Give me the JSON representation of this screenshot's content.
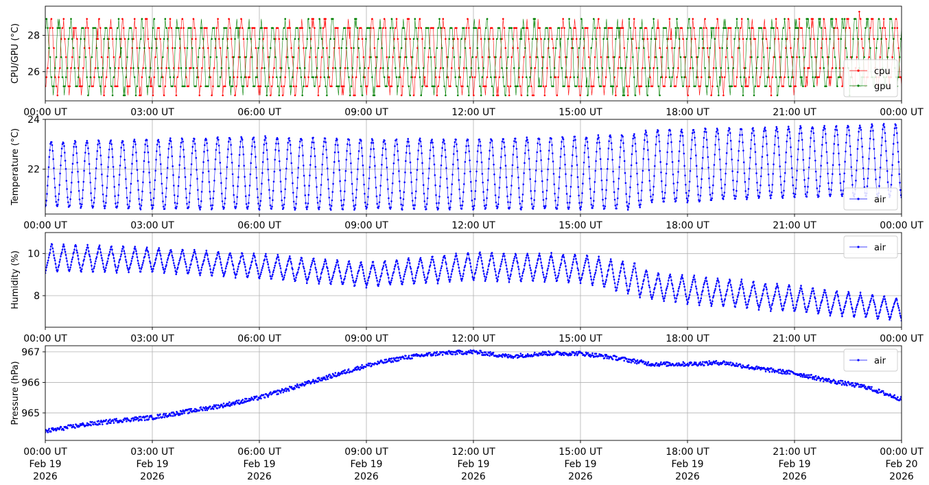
{
  "figure": {
    "date_labels": [
      "Feb 19",
      "Feb 19",
      "Feb 19",
      "Feb 19",
      "Feb 19",
      "Feb 19",
      "Feb 19",
      "Feb 19",
      "Feb 20"
    ],
    "year_label": "2026"
  },
  "chart_data": [
    {
      "type": "line",
      "ylabel": "CPU/GPU (°C)",
      "x_range": [
        "2026-02-19 00:00 UT",
        "2026-02-20 00:00 UT"
      ],
      "x_ticks": [
        "00:00 UT",
        "03:00 UT",
        "06:00 UT",
        "09:00 UT",
        "12:00 UT",
        "15:00 UT",
        "18:00 UT",
        "21:00 UT",
        "00:00 UT"
      ],
      "ylim": [
        24.4,
        29.6
      ],
      "y_ticks": [
        26,
        28
      ],
      "grid": true,
      "legend_position": "lower-right",
      "marker": "dot",
      "series": [
        {
          "name": "cpu",
          "color": "#ff0000",
          "description_pattern": "quantized sawtooth oscillation",
          "min": 24.7,
          "max": 29.3,
          "period_minutes": 20
        },
        {
          "name": "gpu",
          "color": "#008000",
          "description_pattern": "quantized sawtooth oscillation",
          "min": 24.7,
          "max": 28.9,
          "period_minutes": 20
        }
      ]
    },
    {
      "type": "line",
      "ylabel": "Temperature (°C)",
      "x_range": [
        "2026-02-19 00:00 UT",
        "2026-02-20 00:00 UT"
      ],
      "x_ticks": [
        "00:00 UT",
        "03:00 UT",
        "06:00 UT",
        "09:00 UT",
        "12:00 UT",
        "15:00 UT",
        "18:00 UT",
        "21:00 UT",
        "00:00 UT"
      ],
      "ylim": [
        20.2,
        24.0
      ],
      "y_ticks": [
        22,
        24
      ],
      "grid": true,
      "legend_position": "lower-right",
      "marker": "dot",
      "series": [
        {
          "name": "air",
          "color": "#0000ff",
          "period_minutes": 20,
          "x_hours": [
            0,
            3,
            6,
            9,
            12,
            15,
            16.5,
            17,
            18,
            21,
            24
          ],
          "low": [
            20.5,
            20.4,
            20.4,
            20.4,
            20.4,
            20.4,
            20.4,
            20.7,
            20.7,
            20.9,
            20.9
          ],
          "high": [
            23.1,
            23.2,
            23.3,
            23.2,
            23.2,
            23.3,
            23.4,
            23.6,
            23.6,
            23.7,
            23.8
          ]
        }
      ]
    },
    {
      "type": "line",
      "ylabel": "Humidity (%)",
      "x_range": [
        "2026-02-19 00:00 UT",
        "2026-02-20 00:00 UT"
      ],
      "x_ticks": [
        "00:00 UT",
        "03:00 UT",
        "06:00 UT",
        "09:00 UT",
        "12:00 UT",
        "15:00 UT",
        "18:00 UT",
        "21:00 UT",
        "00:00 UT"
      ],
      "ylim": [
        6.5,
        11.0
      ],
      "y_ticks": [
        8,
        10
      ],
      "grid": true,
      "legend_position": "upper-right",
      "marker": "dot",
      "series": [
        {
          "name": "air",
          "color": "#0000ff",
          "period_minutes": 20,
          "x_hours": [
            0,
            3,
            6,
            9,
            12,
            15,
            16.5,
            17,
            18,
            21,
            24
          ],
          "low": [
            9.1,
            9.1,
            8.8,
            8.4,
            8.7,
            8.6,
            8.0,
            7.8,
            7.6,
            7.2,
            6.8
          ],
          "high": [
            10.5,
            10.3,
            10.0,
            9.6,
            10.1,
            10.0,
            9.6,
            9.1,
            9.0,
            8.5,
            7.9
          ]
        }
      ]
    },
    {
      "type": "scatter",
      "ylabel": "Pressure (hPa)",
      "x_range": [
        "2026-02-19 00:00 UT",
        "2026-02-20 00:00 UT"
      ],
      "x_ticks": [
        "00:00 UT",
        "03:00 UT",
        "06:00 UT",
        "09:00 UT",
        "12:00 UT",
        "15:00 UT",
        "18:00 UT",
        "21:00 UT",
        "00:00 UT"
      ],
      "ylim": [
        964.1,
        967.2
      ],
      "y_ticks": [
        965,
        966,
        967
      ],
      "grid": true,
      "legend_position": "upper-right",
      "marker": "dot",
      "series": [
        {
          "name": "air",
          "color": "#0000ff",
          "x_hours": [
            0,
            1,
            2,
            3,
            4,
            5,
            6,
            7,
            8,
            9,
            10,
            11,
            12,
            13,
            14,
            15,
            16,
            17,
            18,
            19,
            20,
            21,
            22,
            23,
            24
          ],
          "y": [
            964.4,
            964.6,
            964.75,
            964.85,
            965.05,
            965.25,
            965.5,
            965.85,
            966.2,
            966.55,
            966.8,
            966.95,
            967.0,
            966.85,
            966.95,
            966.95,
            966.8,
            966.6,
            966.6,
            966.65,
            966.45,
            966.3,
            966.05,
            965.85,
            965.45
          ]
        }
      ]
    }
  ]
}
